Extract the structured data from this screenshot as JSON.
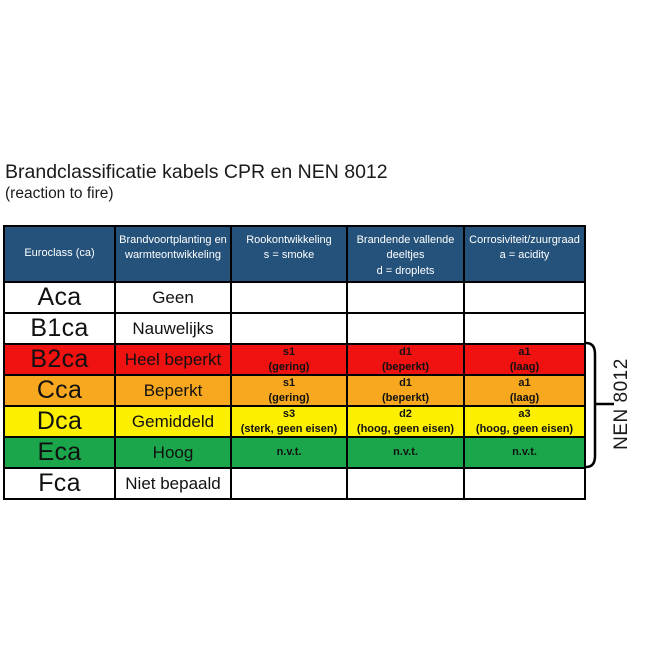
{
  "page": {
    "title": "Brandclassificatie kabels CPR en NEN 8012",
    "subtitle": "(reaction to fire)"
  },
  "colors": {
    "header_bg": "#25527B",
    "header_text": "#FFFFFF",
    "grid_border": "#000000",
    "white": "#FFFFFF",
    "red": "#F01111",
    "orange": "#F7A81F",
    "yellow": "#FCF000",
    "green": "#1BA64C"
  },
  "table": {
    "headers": [
      {
        "id": "euroclass",
        "lines": [
          "Euroclass (ca)"
        ]
      },
      {
        "id": "spread",
        "lines": [
          "Brandvoortplanting en",
          "warmteontwikkeling"
        ]
      },
      {
        "id": "smoke",
        "lines": [
          "Rookontwikkeling",
          "s = smoke"
        ]
      },
      {
        "id": "droplets",
        "lines": [
          "Brandende vallende",
          "deeltjes",
          "d = droplets"
        ]
      },
      {
        "id": "acidity",
        "lines": [
          "Corrosiviteit/zuurgraad",
          "a = acidity"
        ]
      }
    ],
    "rows": [
      {
        "euroclass": "Aca",
        "spread": "Geen",
        "smoke": [],
        "droplets": [],
        "acidity": [],
        "color_key": "white"
      },
      {
        "euroclass": "B1ca",
        "spread": "Nauwelijks",
        "smoke": [],
        "droplets": [],
        "acidity": [],
        "color_key": "white"
      },
      {
        "euroclass": "B2ca",
        "spread": "Heel beperkt",
        "smoke": [
          "s1",
          "(gering)"
        ],
        "droplets": [
          "d1",
          "(beperkt)"
        ],
        "acidity": [
          "a1",
          "(laag)"
        ],
        "color_key": "red"
      },
      {
        "euroclass": "Cca",
        "spread": "Beperkt",
        "smoke": [
          "s1",
          "(gering)"
        ],
        "droplets": [
          "d1",
          "(beperkt)"
        ],
        "acidity": [
          "a1",
          "(laag)"
        ],
        "color_key": "orange"
      },
      {
        "euroclass": "Dca",
        "spread": "Gemiddeld",
        "smoke": [
          "s3",
          "(sterk, geen eisen)"
        ],
        "droplets": [
          "d2",
          "(hoog, geen eisen)"
        ],
        "acidity": [
          "a3",
          "(hoog, geen eisen)"
        ],
        "color_key": "yellow"
      },
      {
        "euroclass": "Eca",
        "spread": "Hoog",
        "smoke": [
          "n.v.t."
        ],
        "droplets": [
          "n.v.t."
        ],
        "acidity": [
          "n.v.t."
        ],
        "color_key": "green"
      },
      {
        "euroclass": "Fca",
        "spread": "Niet bepaald",
        "smoke": [],
        "droplets": [],
        "acidity": [],
        "color_key": "white"
      }
    ]
  },
  "annotation": {
    "label": "NEN 8012",
    "spans_rows": [
      "B2ca",
      "Cca",
      "Dca",
      "Eca"
    ]
  }
}
